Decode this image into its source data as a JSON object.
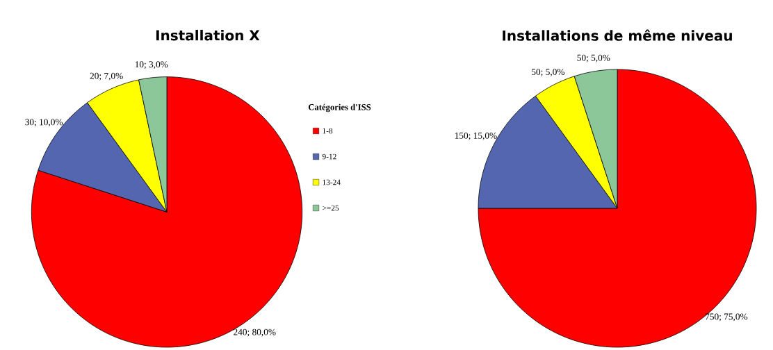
{
  "chart_data": [
    {
      "type": "pie",
      "title": "Installation X",
      "legend_title": "Catégories d'ISS",
      "legend": "right",
      "categories": [
        "1-8",
        "9-12",
        "13-24",
        ">=25"
      ],
      "values": [
        240,
        30,
        20,
        10
      ],
      "value_labels": [
        "240; 80,0%",
        "30; 10,0%",
        "20; 7,0%",
        "10; 3,0%"
      ],
      "colors": [
        "#ff0000",
        "#5466b0",
        "#ffff00",
        "#8cc79a"
      ]
    },
    {
      "type": "pie",
      "title": "Installations de même niveau",
      "categories": [
        null,
        null,
        null,
        null
      ],
      "values": [
        750,
        150,
        50,
        50
      ],
      "value_labels": [
        "750; 75,0%",
        "150; 15,0%",
        "50; 5,0%",
        "50; 5,0%"
      ],
      "colors": [
        "#ff0000",
        "#5466b0",
        "#ffff00",
        "#8cc79a"
      ]
    }
  ]
}
